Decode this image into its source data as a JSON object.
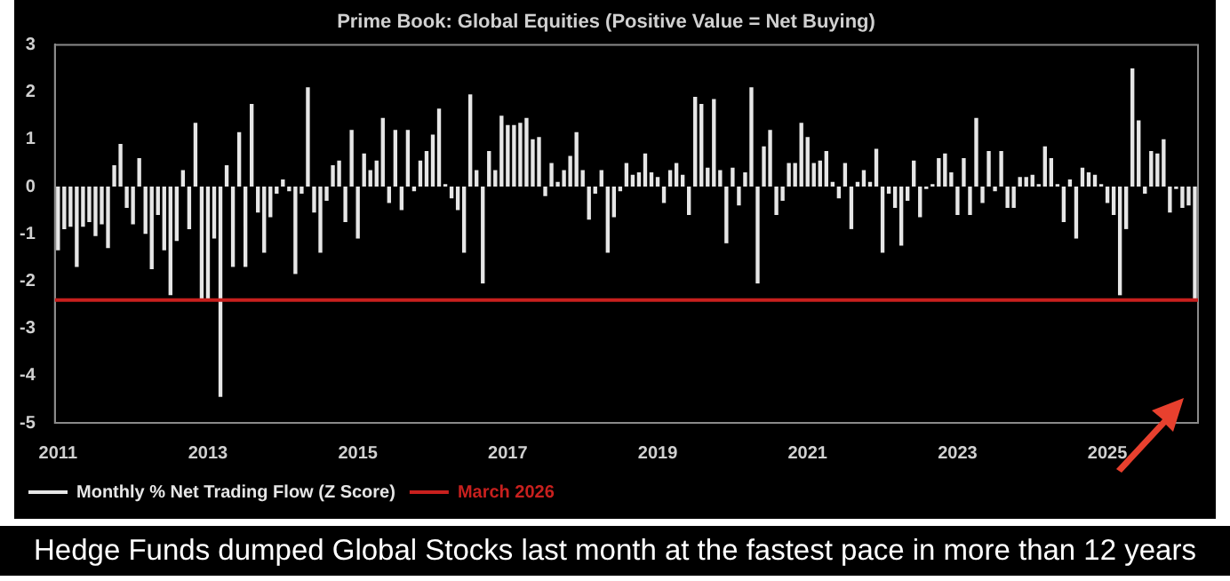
{
  "chart_data": {
    "type": "bar",
    "title": "Prime Book: Global Equities (Positive Value = Net Buying)",
    "categories": [
      "2011",
      null,
      null,
      null,
      null,
      null,
      null,
      null,
      null,
      null,
      null,
      null,
      null,
      null,
      null,
      null,
      null,
      null,
      null,
      null,
      null,
      null,
      null,
      null,
      "2013",
      null,
      null,
      null,
      null,
      null,
      null,
      null,
      null,
      null,
      null,
      null,
      null,
      null,
      null,
      null,
      null,
      null,
      null,
      null,
      null,
      null,
      null,
      null,
      "2015",
      null,
      null,
      null,
      null,
      null,
      null,
      null,
      null,
      null,
      null,
      null,
      null,
      null,
      null,
      null,
      null,
      null,
      null,
      null,
      null,
      null,
      null,
      null,
      "2017",
      null,
      null,
      null,
      null,
      null,
      null,
      null,
      null,
      null,
      null,
      null,
      null,
      null,
      null,
      null,
      null,
      null,
      null,
      null,
      null,
      null,
      null,
      null,
      "2019",
      null,
      null,
      null,
      null,
      null,
      null,
      null,
      null,
      null,
      null,
      null,
      null,
      null,
      null,
      null,
      null,
      null,
      null,
      null,
      null,
      null,
      null,
      null,
      "2021",
      null,
      null,
      null,
      null,
      null,
      null,
      null,
      null,
      null,
      null,
      null,
      null,
      null,
      null,
      null,
      null,
      null,
      null,
      null,
      null,
      null,
      null,
      null,
      "2023",
      null,
      null,
      null,
      null,
      null,
      null,
      null,
      null,
      null,
      null,
      null,
      null,
      null,
      null,
      null,
      null,
      null,
      null,
      null,
      null,
      null,
      null,
      null,
      "2025",
      null,
      null,
      null,
      null,
      null,
      null,
      null,
      null,
      null,
      null,
      null,
      null,
      null,
      null
    ],
    "series": [
      {
        "name": "Monthly % Net Trading Flow (Z Score)",
        "color": "#e6e6e6",
        "values": [
          -1.35,
          -0.9,
          -0.85,
          -1.7,
          -0.85,
          -0.75,
          -1.05,
          -0.8,
          -1.3,
          0.45,
          0.9,
          -0.45,
          -0.8,
          0.6,
          -1.0,
          -1.75,
          -0.6,
          -1.35,
          -2.3,
          -1.15,
          0.35,
          -0.9,
          1.35,
          -2.4,
          -2.4,
          -1.1,
          -4.45,
          0.45,
          -1.7,
          1.15,
          -1.7,
          1.75,
          -0.55,
          -1.4,
          -0.65,
          -0.15,
          0.15,
          -0.1,
          -1.85,
          -0.15,
          2.1,
          -0.55,
          -1.4,
          -0.3,
          0.45,
          0.55,
          -0.75,
          1.2,
          -1.1,
          0.7,
          0.35,
          0.55,
          1.45,
          -0.35,
          1.2,
          -0.5,
          1.2,
          -0.1,
          0.55,
          0.75,
          1.1,
          1.65,
          0.05,
          -0.25,
          -0.5,
          -1.4,
          1.95,
          0.35,
          -2.05,
          0.75,
          0.35,
          1.5,
          1.3,
          1.3,
          1.35,
          1.45,
          1.0,
          1.05,
          -0.2,
          0.5,
          0.1,
          0.35,
          0.65,
          1.15,
          0.35,
          -0.7,
          -0.15,
          0.35,
          -1.4,
          -0.65,
          -0.1,
          0.5,
          0.25,
          0.3,
          0.7,
          0.3,
          0.2,
          -0.35,
          0.35,
          0.5,
          0.25,
          -0.6,
          1.9,
          1.75,
          0.4,
          1.85,
          0.35,
          -1.2,
          0.4,
          -0.4,
          0.3,
          2.1,
          -2.05,
          0.85,
          1.2,
          -0.6,
          -0.3,
          0.5,
          0.5,
          1.35,
          1.05,
          0.5,
          0.55,
          0.75,
          0.1,
          -0.25,
          0.5,
          -0.9,
          0.1,
          0.35,
          0.1,
          0.8,
          -1.4,
          -0.15,
          -0.45,
          -1.25,
          -0.3,
          0.55,
          -0.65,
          -0.05,
          0.05,
          0.6,
          0.7,
          0.3,
          -0.6,
          0.6,
          -0.6,
          1.45,
          -0.35,
          0.75,
          -0.1,
          0.75,
          -0.45,
          -0.45,
          0.2,
          0.2,
          0.25,
          0.05,
          0.85,
          0.6,
          0.05,
          -0.75,
          0.15,
          -1.1,
          0.4,
          0.3,
          0.25,
          0.05,
          -0.35,
          -0.6,
          -2.3,
          -0.9,
          2.5,
          1.4,
          -0.15,
          0.75,
          0.7,
          1.0,
          -0.55,
          -0.05,
          -0.45,
          -0.4,
          -2.4
        ]
      }
    ],
    "ylim": [
      -5,
      3
    ],
    "yticks": [
      -5,
      -4,
      -3,
      -2,
      -1,
      0,
      1,
      2,
      3
    ],
    "grid": false,
    "legend": "bottom left",
    "ref_lines": [
      {
        "axis": "y",
        "value": -2.4,
        "label": "March 2026",
        "color": "#c8201e"
      }
    ],
    "annotations": [
      "Hedge Funds dumped Global Stocks last month at the fastest pace in more than 12 years"
    ]
  }
}
